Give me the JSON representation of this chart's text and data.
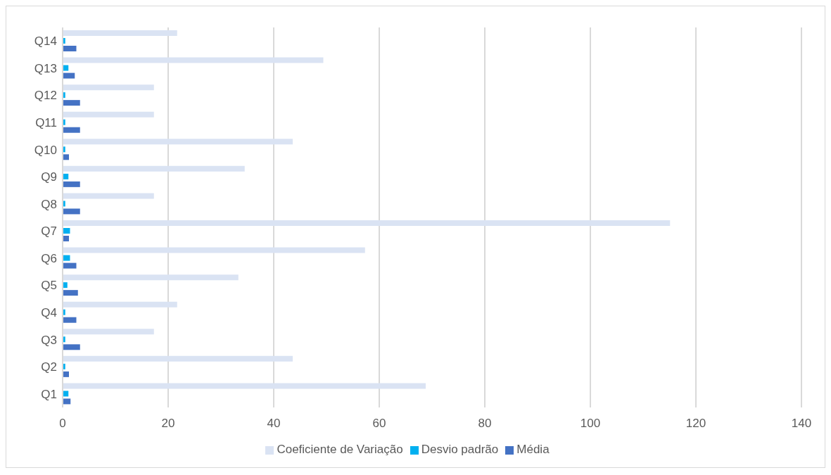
{
  "chart_data": {
    "type": "bar",
    "orientation": "horizontal",
    "categories": [
      "Q14",
      "Q13",
      "Q12",
      "Q11",
      "Q10",
      "Q9",
      "Q8",
      "Q7",
      "Q6",
      "Q5",
      "Q4",
      "Q3",
      "Q2",
      "Q1"
    ],
    "series": [
      {
        "name": "Coeficiente de Variação",
        "color": "#dae3f3",
        "values": [
          21.7,
          49.4,
          17.3,
          17.3,
          43.6,
          34.5,
          17.3,
          115.1,
          57.3,
          33.3,
          21.7,
          17.3,
          43.6,
          68.8
        ]
      },
      {
        "name": "Desvio padrão",
        "color": "#00b0f0",
        "values": [
          0.5,
          1.1,
          0.5,
          0.5,
          0.5,
          1.1,
          0.5,
          1.4,
          1.4,
          0.9,
          0.5,
          0.5,
          0.5,
          1.1
        ]
      },
      {
        "name": "Média",
        "color": "#4472c4",
        "values": [
          2.6,
          2.3,
          3.3,
          3.3,
          1.2,
          3.3,
          3.3,
          1.2,
          2.6,
          2.9,
          2.6,
          3.3,
          1.2,
          1.5
        ]
      }
    ],
    "xlim": [
      0,
      140
    ],
    "xticks": [
      0,
      20,
      40,
      60,
      80,
      100,
      120,
      140
    ],
    "grid": "x",
    "legend": "bottom"
  }
}
